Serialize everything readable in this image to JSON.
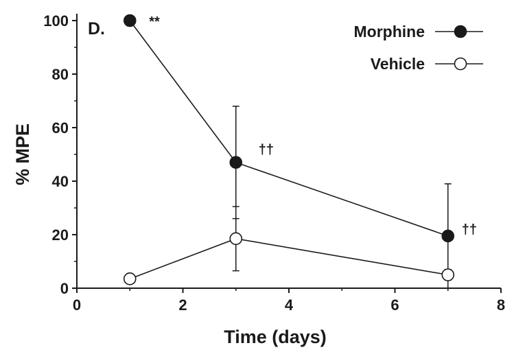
{
  "chart_data": {
    "type": "line",
    "panel_label": "D.",
    "xlabel": "Time (days)",
    "ylabel": "% MPE",
    "xlim": [
      0,
      8
    ],
    "ylim": [
      0,
      100
    ],
    "xticks": [
      0,
      2,
      4,
      6,
      8
    ],
    "yticks": [
      0,
      20,
      40,
      60,
      80,
      100
    ],
    "x_tick_labels": [
      "0",
      "2",
      "4",
      "6",
      "8"
    ],
    "y_tick_labels": [
      "0",
      "20",
      "40",
      "60",
      "80",
      "100"
    ],
    "grid": false,
    "legend_position": "top-right",
    "series": [
      {
        "name": "Morphine",
        "marker": "filled-circle",
        "color": "#1a1a1a",
        "x": [
          1,
          3,
          7
        ],
        "y": [
          100,
          47,
          19.5
        ],
        "error": [
          0,
          21,
          19.5
        ]
      },
      {
        "name": "Vehicle",
        "marker": "open-circle",
        "color": "#1a1a1a",
        "x": [
          1,
          3,
          7
        ],
        "y": [
          3.5,
          18.5,
          5
        ],
        "error": [
          0,
          12,
          2
        ]
      }
    ],
    "annotations": [
      {
        "text": "**",
        "x": 1,
        "y": 100
      },
      {
        "text": "††",
        "x": 3,
        "y": 47
      },
      {
        "text": "††",
        "x": 7,
        "y": 19.5
      }
    ]
  }
}
